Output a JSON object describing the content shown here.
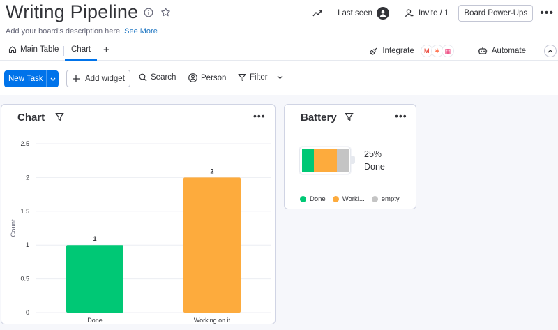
{
  "board": {
    "title": "Writing Pipeline",
    "description": "Add your board's description here",
    "see_more": "See More"
  },
  "header": {
    "last_seen": "Last seen",
    "invite": "Invite / 1",
    "power_ups": "Board Power-Ups"
  },
  "tabs": [
    {
      "label": "Main Table",
      "icon": "home-icon"
    },
    {
      "label": "Chart",
      "active": true
    }
  ],
  "integrations": {
    "label": "Integrate",
    "logos": [
      {
        "glyph": "M",
        "color": "#ea4335"
      },
      {
        "glyph": "✱",
        "color": "#ff7a59"
      },
      {
        "glyph": "▦",
        "color": "#e91e63"
      }
    ]
  },
  "automate": {
    "label": "Automate"
  },
  "toolbar": {
    "new_task": "New Task",
    "add_widget": "Add widget",
    "search": "Search",
    "person": "Person",
    "filter": "Filter"
  },
  "chart_card": {
    "title": "Chart"
  },
  "battery_card": {
    "title": "Battery",
    "percent": "25%",
    "status": "Done",
    "segments": [
      {
        "label": "Done",
        "share": 0.25,
        "color": "#00c875"
      },
      {
        "label": "Worki...",
        "share": 0.5,
        "color": "#fdab3d"
      },
      {
        "label": "empty",
        "share": 0.25,
        "color": "#c4c4c4"
      }
    ]
  },
  "chart_data": {
    "type": "bar",
    "categories": [
      "Done",
      "Working on it"
    ],
    "values": [
      1,
      2
    ],
    "data_labels": [
      "1",
      "2"
    ],
    "colors": [
      "#00c875",
      "#fdab3d"
    ],
    "ylabel": "Count",
    "xlabel": "",
    "ylim": [
      0,
      2.5
    ],
    "yticks": [
      0,
      0.5,
      1,
      1.5,
      2,
      2.5
    ],
    "ytick_labels": [
      "0",
      "0.5",
      "1",
      "1.5",
      "2",
      "2.5"
    ],
    "grid": true,
    "legend": "none"
  }
}
